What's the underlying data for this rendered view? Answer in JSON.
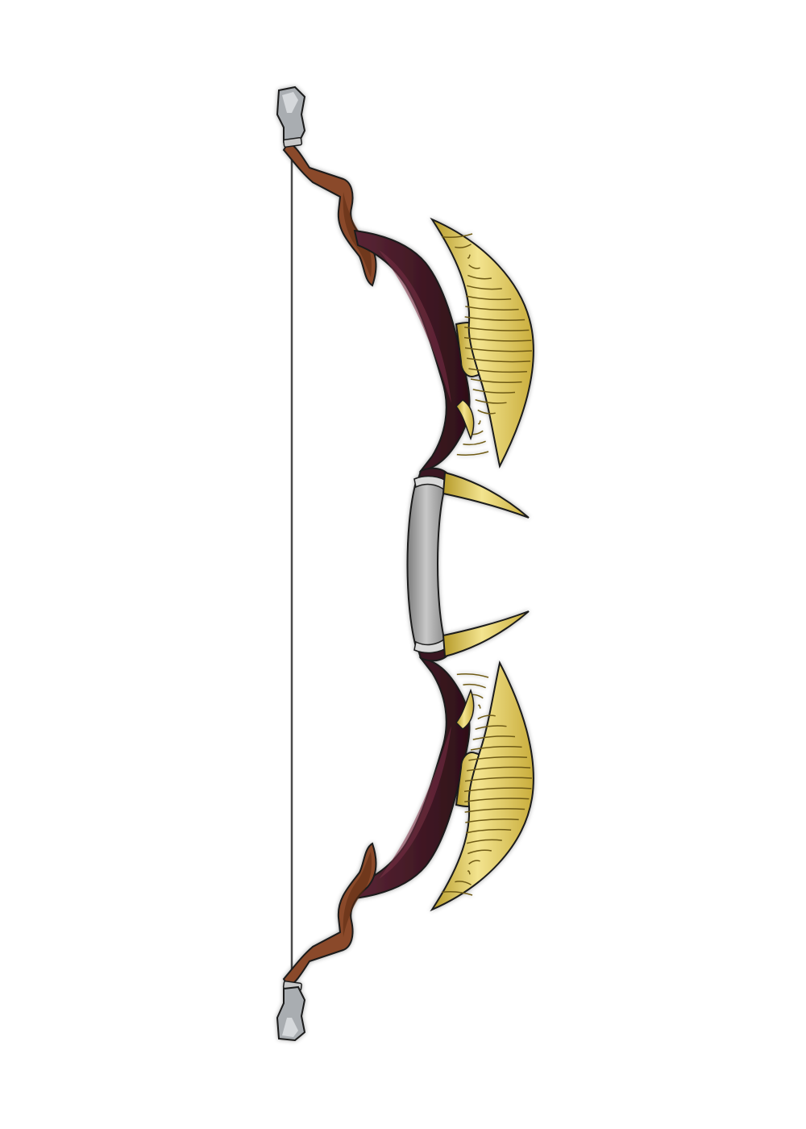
{
  "artwork": {
    "subject": "fantasy-recurve-bow",
    "palette": {
      "background": "#ffffff",
      "outline": "#1a1a1a",
      "string": "#555555",
      "tip_metal": "#a9adb1",
      "tip_metal_light": "#d5d8db",
      "wood_limb": "#8a4a2a",
      "wood_limb_dark": "#5e2f18",
      "riser_dark": "#3a1420",
      "riser_mid": "#5a2535",
      "grip_metal": "#9a9a9a",
      "grip_metal_light": "#c8c8c8",
      "gold": "#e6cf5a",
      "gold_light": "#f3e48f",
      "gold_dark": "#b69a2a"
    }
  }
}
